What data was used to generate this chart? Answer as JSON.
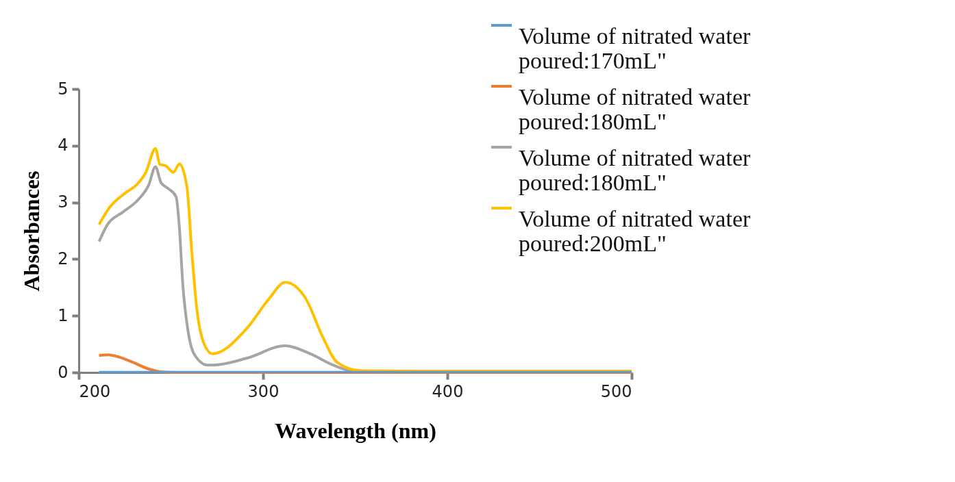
{
  "chart_data": {
    "type": "line",
    "xlabel": "Wavelength (nm)",
    "ylabel": "Absorbances",
    "xlim": [
      200,
      500
    ],
    "xticks": [
      200,
      300,
      400,
      500
    ],
    "ylim": [
      0,
      5
    ],
    "yticks": [
      0,
      1,
      2,
      3,
      4,
      5
    ],
    "grid": false,
    "legend": "right",
    "series": [
      {
        "name": "Volume of nitrated water poured:170mL\"",
        "color": "#5b9bd5",
        "x": [
          211,
          250,
          300,
          350,
          400,
          450,
          500
        ],
        "values": [
          0.01,
          0.01,
          0.01,
          0.01,
          0.01,
          0.01,
          0.01
        ]
      },
      {
        "name": "Volume of nitrated water poured:180mL\"",
        "color": "#ed7d31",
        "x": [
          211,
          216,
          222,
          230,
          238,
          245,
          255,
          300,
          400,
          500
        ],
        "values": [
          0.3,
          0.31,
          0.27,
          0.17,
          0.06,
          0.01,
          0,
          0,
          0,
          0
        ]
      },
      {
        "name": "Volume of nitrated water poured:180mL\"",
        "color": "#a5a5a5",
        "x": [
          211,
          215.6,
          224,
          232,
          238,
          241.6,
          244.6,
          248.3,
          252.8,
          254.6,
          256.5,
          258.7,
          262.5,
          270,
          272.5,
          291,
          312,
          325.6,
          338,
          348,
          360,
          400,
          500
        ],
        "values": [
          2.31,
          2.61,
          2.83,
          3.04,
          3.31,
          3.63,
          3.35,
          3.25,
          3.1,
          2.55,
          1.53,
          0.86,
          0.33,
          0.13,
          0.13,
          0.25,
          0.47,
          0.33,
          0.13,
          0.03,
          0.02,
          0.02,
          0.02
        ]
      },
      {
        "name": "Volume of nitrated water poured:200mL\"",
        "color": "#ffc000",
        "x": [
          211,
          216.7,
          225,
          232,
          236.4,
          241.6,
          244,
          247,
          251.3,
          254.6,
          258.7,
          261.3,
          264,
          267.7,
          272.5,
          291,
          303,
          312,
          323.4,
          332,
          340.5,
          353,
          400,
          500
        ],
        "values": [
          2.61,
          2.91,
          3.16,
          3.33,
          3.53,
          3.95,
          3.67,
          3.65,
          3.53,
          3.68,
          3.27,
          2.14,
          1.14,
          0.53,
          0.33,
          0.77,
          1.29,
          1.59,
          1.29,
          0.65,
          0.17,
          0.03,
          0.02,
          0.02
        ]
      }
    ]
  }
}
